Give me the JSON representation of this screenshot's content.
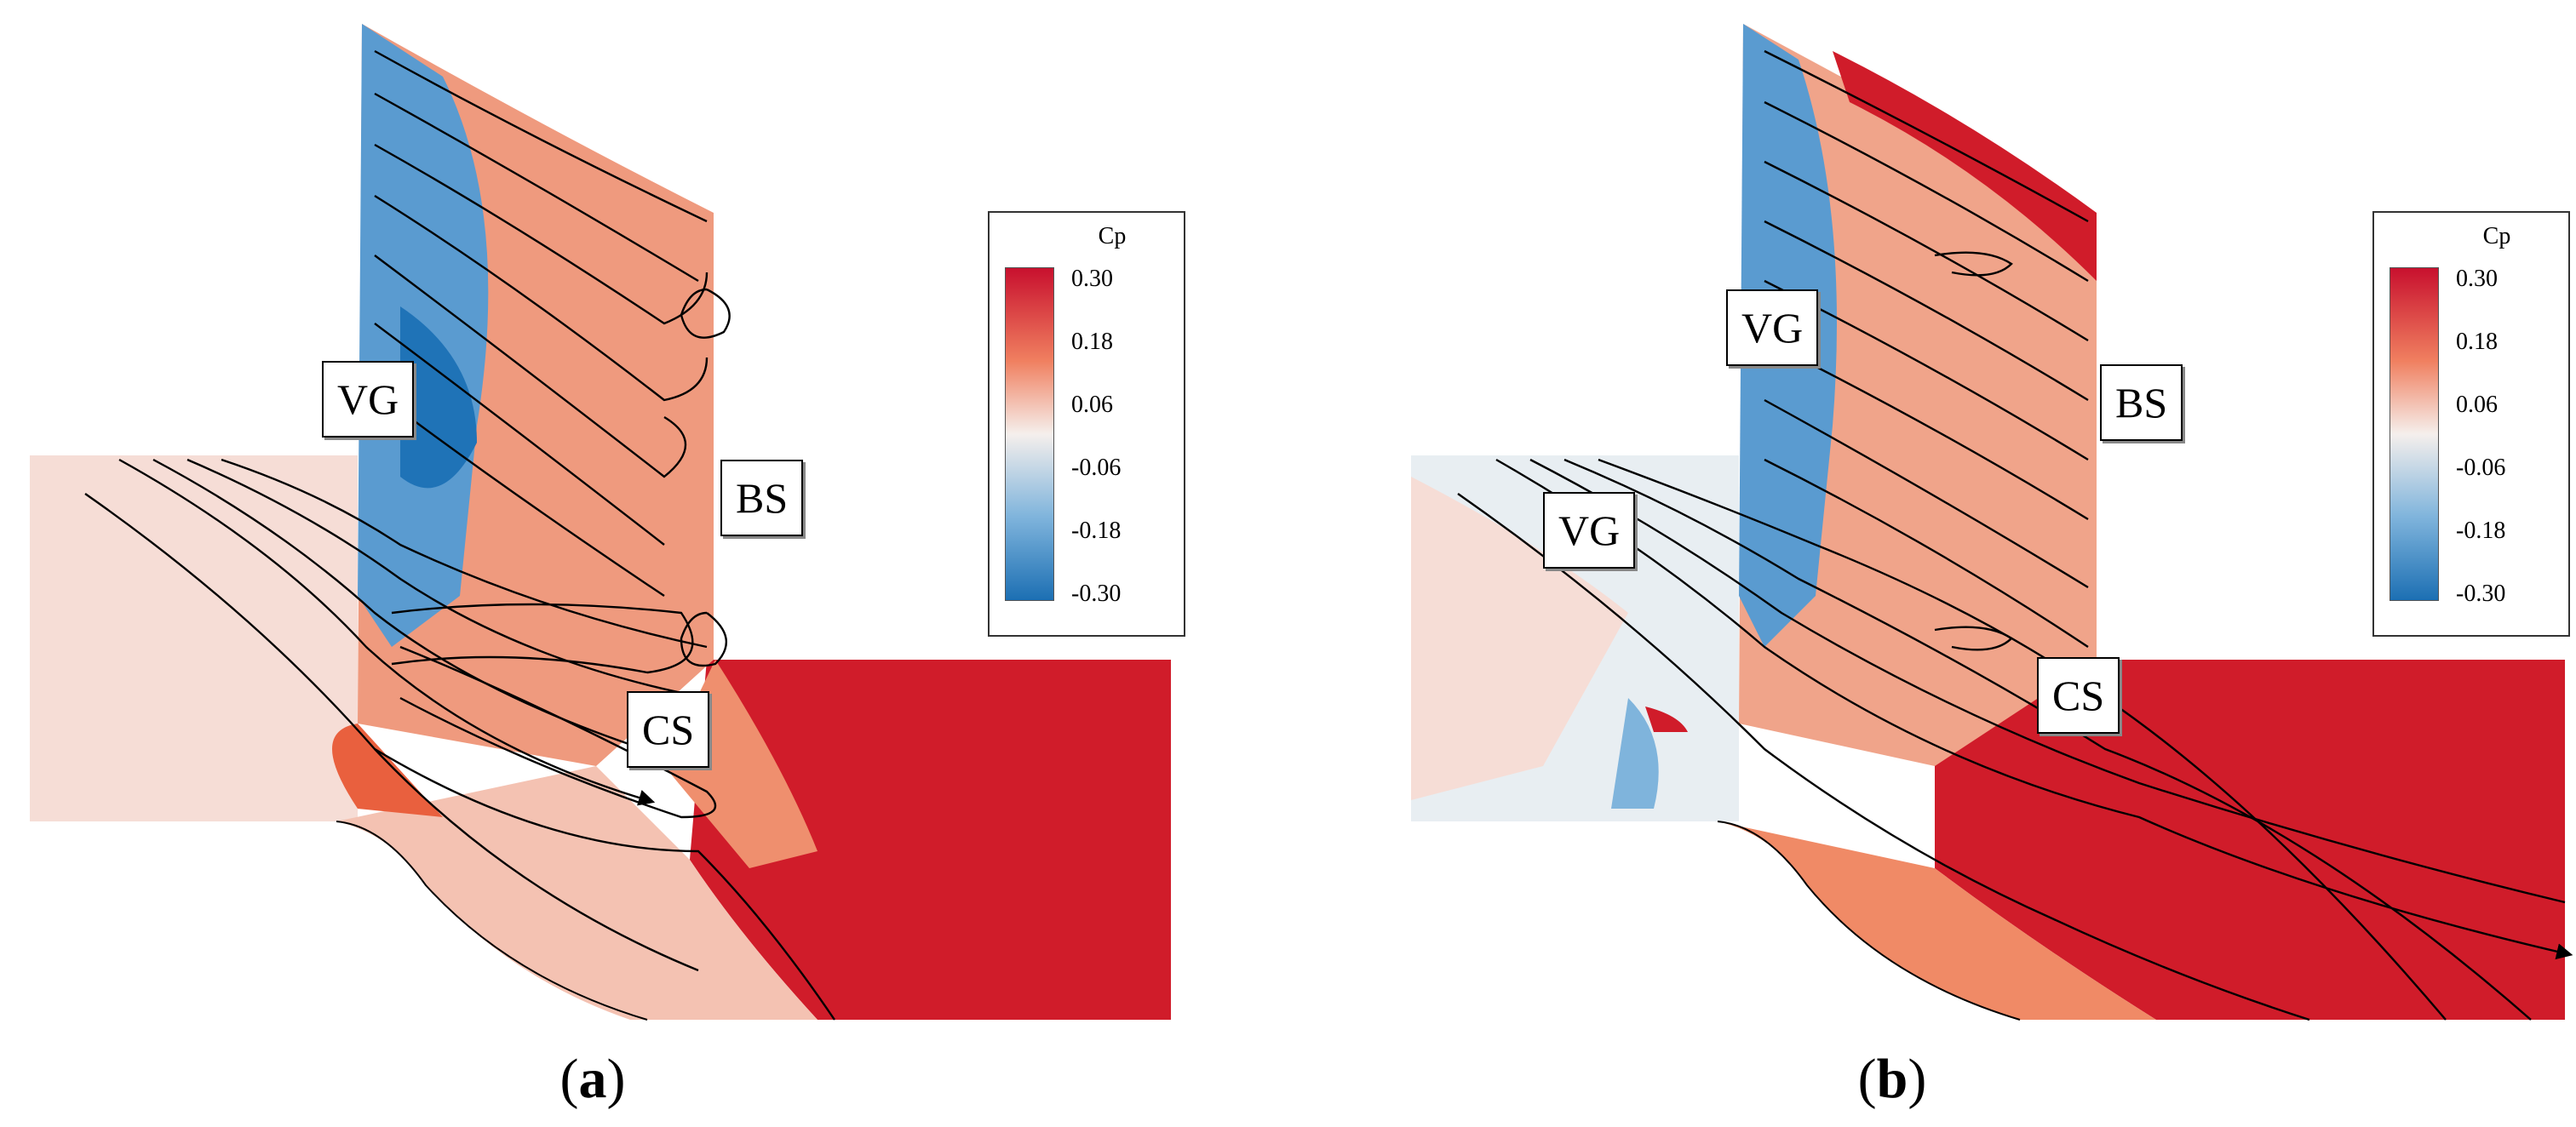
{
  "panels": [
    {
      "id": "a",
      "caption_open": "(",
      "caption_letter": "a",
      "caption_close": ")",
      "labels": {
        "vg": "VG",
        "bs": "BS",
        "cs": "CS"
      }
    },
    {
      "id": "b",
      "caption_open": "(",
      "caption_letter": "b",
      "caption_close": ")",
      "labels": {
        "vg_upper": "VG",
        "vg_lower": "VG",
        "bs": "BS",
        "cs": "CS"
      }
    }
  ],
  "colorbar": {
    "title": "Cp",
    "ticks": [
      "0.30",
      "0.18",
      "0.06",
      "-0.06",
      "-0.18",
      "-0.30"
    ],
    "colors": {
      "max": "#c8102e",
      "high": "#f08060",
      "mid": "#f5efec",
      "low": "#7fb4dc",
      "min": "#1c6fb3"
    }
  },
  "palette": {
    "inlet_pale": "#f6ddd6",
    "blade_blue": "#5a9bd0",
    "deep_blue": "#1f73b7",
    "warm": "#ef8f6e",
    "hot": "#d01c2a"
  }
}
